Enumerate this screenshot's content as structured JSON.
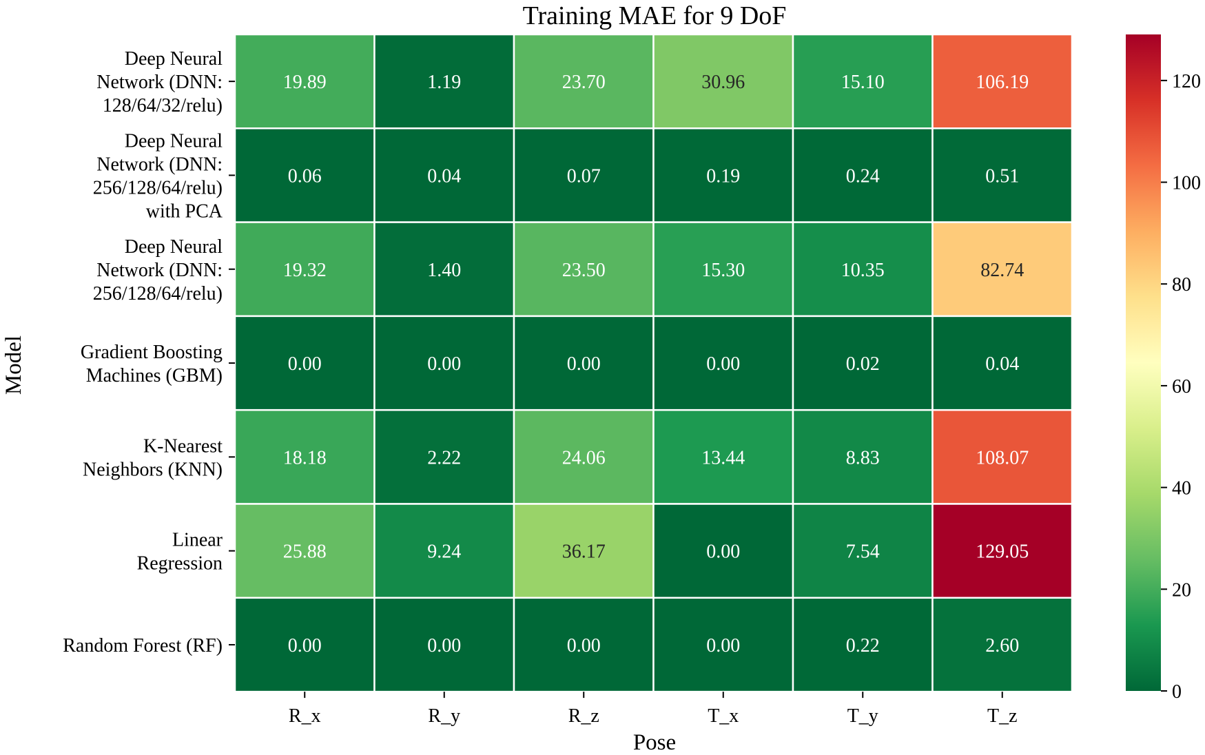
{
  "chart_data": {
    "type": "heatmap",
    "title": "Training  MAE for 9 DoF",
    "xlabel": "Pose",
    "ylabel": "Model",
    "x_categories": [
      "R_x",
      "R_y",
      "R_z",
      "T_x",
      "T_y",
      "T_z"
    ],
    "y_categories": [
      [
        "Deep Neural",
        "Network (DNN:",
        "128/64/32/relu)"
      ],
      [
        "Deep Neural",
        "Network (DNN:",
        "256/128/64/relu)",
        "with PCA"
      ],
      [
        "Deep Neural",
        "Network (DNN:",
        "256/128/64/relu)"
      ],
      [
        "Gradient Boosting",
        "Machines (GBM)"
      ],
      [
        "K-Nearest",
        "Neighbors (KNN)"
      ],
      [
        "Linear",
        "Regression"
      ],
      [
        "Random Forest (RF)"
      ]
    ],
    "values": [
      [
        19.89,
        1.19,
        23.7,
        30.96,
        15.1,
        106.19
      ],
      [
        0.06,
        0.04,
        0.07,
        0.19,
        0.24,
        0.51
      ],
      [
        19.32,
        1.4,
        23.5,
        15.3,
        10.35,
        82.74
      ],
      [
        0.0,
        0.0,
        0.0,
        0.0,
        0.02,
        0.04
      ],
      [
        18.18,
        2.22,
        24.06,
        13.44,
        8.83,
        108.07
      ],
      [
        25.88,
        9.24,
        36.17,
        0.0,
        7.54,
        129.05
      ],
      [
        0.0,
        0.0,
        0.0,
        0.0,
        0.22,
        2.6
      ]
    ],
    "value_format": "2 decimals",
    "colormap": "RdYlGn_r",
    "colorbar": {
      "range": [
        0,
        129.05
      ],
      "ticks": [
        0,
        20,
        40,
        60,
        80,
        100,
        120
      ],
      "placement": "right"
    },
    "grid": false,
    "cell_separator_color": "#ffffff"
  }
}
